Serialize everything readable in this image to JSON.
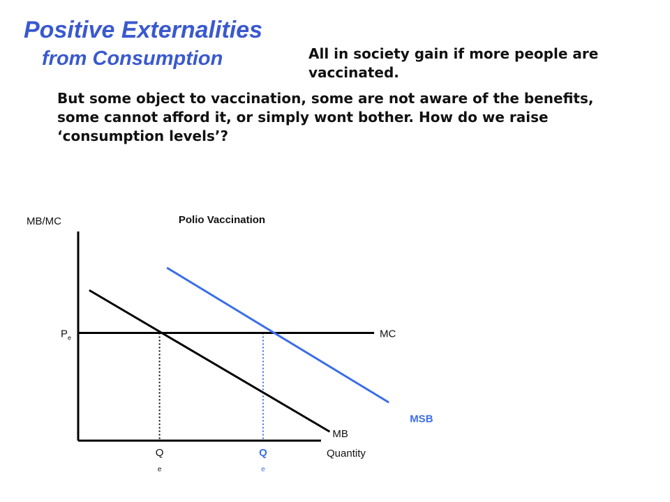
{
  "slide": {
    "title_line1": "Positive Externalities",
    "title_line2": "from Consumption",
    "note_top": "All in society gain if more people are vaccinated.",
    "note_body": "But some object to vaccination, some are not aware of the benefits, some cannot afford it, or simply wont bother.  How do we raise ‘consumption levels’?"
  },
  "colors": {
    "title": "#3a59cf",
    "text": "#111111",
    "private_curves": "#000000",
    "social_curve": "#3a6ee8"
  },
  "chart_data": {
    "type": "line",
    "title": "Polio Vaccination",
    "xlabel": "Quantity",
    "ylabel": "MB/MC",
    "xlim": [
      0,
      10
    ],
    "ylim": [
      0,
      10
    ],
    "series": [
      {
        "name": "MC",
        "color": "#000000",
        "points": [
          [
            0,
            4.8
          ],
          [
            8.0,
            4.8
          ]
        ]
      },
      {
        "name": "MB",
        "color": "#000000",
        "points": [
          [
            0.3,
            6.7
          ],
          [
            6.8,
            0.4
          ]
        ]
      },
      {
        "name": "MSB",
        "color": "#3a6ee8",
        "points": [
          [
            2.4,
            7.7
          ],
          [
            8.4,
            1.7
          ]
        ]
      }
    ],
    "price_label": {
      "main": "P",
      "sub": "e"
    },
    "equilibria": [
      {
        "label": "Q",
        "sub": "e",
        "x": 2.2,
        "y": 4.8,
        "color": "#000000"
      },
      {
        "label": "Q",
        "sub": "e",
        "x": 5.0,
        "y": 4.8,
        "color": "#3a6ee8"
      }
    ]
  }
}
